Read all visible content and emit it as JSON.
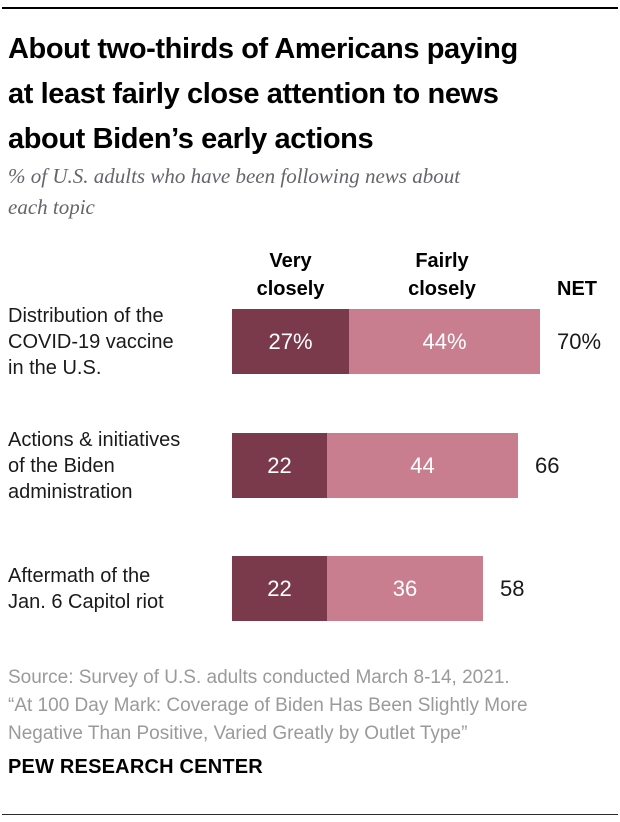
{
  "page": {
    "title": "About two-thirds of Americans paying\nat least fairly close attention to news\nabout Biden’s early actions",
    "subtitle": "% of U.S. adults who have been following news about\neach topic",
    "source": "Source: Survey of U.S. adults conducted March 8-14, 2021.\n“At 100 Day Mark: Coverage of Biden Has Been Slightly More\nNegative Than Positive, Varied Greatly by Outlet Type”",
    "branding": "PEW RESEARCH CENTER"
  },
  "colors": {
    "very_closely_bar": "#7a3a4c",
    "fairly_closely_bar": "#c97e8f",
    "bar_value_text": "#ffffff",
    "net_value_text": "#1a1a1a",
    "subtitle_text": "#63666b",
    "source_text": "#9a9a9a"
  },
  "chart_data": {
    "type": "bar",
    "orientation": "horizontal",
    "stacked": true,
    "grid": false,
    "xlim": [
      0,
      100
    ],
    "title": "About two-thirds of Americans paying at least fairly close attention to news about Biden’s early actions",
    "subtitle": "% of U.S. adults who have been following news about each topic",
    "column_headers": {
      "very": "Very\nclosely",
      "fairly": "Fairly\nclosely",
      "net": "NET"
    },
    "categories": [
      "Distribution of the\nCOVID-19 vaccine\nin the U.S.",
      "Actions & initiatives\nof the Biden\nadministration",
      "Aftermath of the\nJan. 6 Capitol riot"
    ],
    "series": [
      {
        "name": "Very closely",
        "color": "#7a3a4c",
        "values": [
          27,
          22,
          22
        ],
        "labels": [
          "27%",
          "22",
          "22"
        ]
      },
      {
        "name": "Fairly closely",
        "color": "#c97e8f",
        "values": [
          44,
          44,
          36
        ],
        "labels": [
          "44%",
          "44",
          "36"
        ]
      }
    ],
    "net": {
      "label": "NET",
      "values": [
        70,
        66,
        58
      ],
      "labels": [
        "70%",
        "66",
        "58"
      ]
    }
  }
}
